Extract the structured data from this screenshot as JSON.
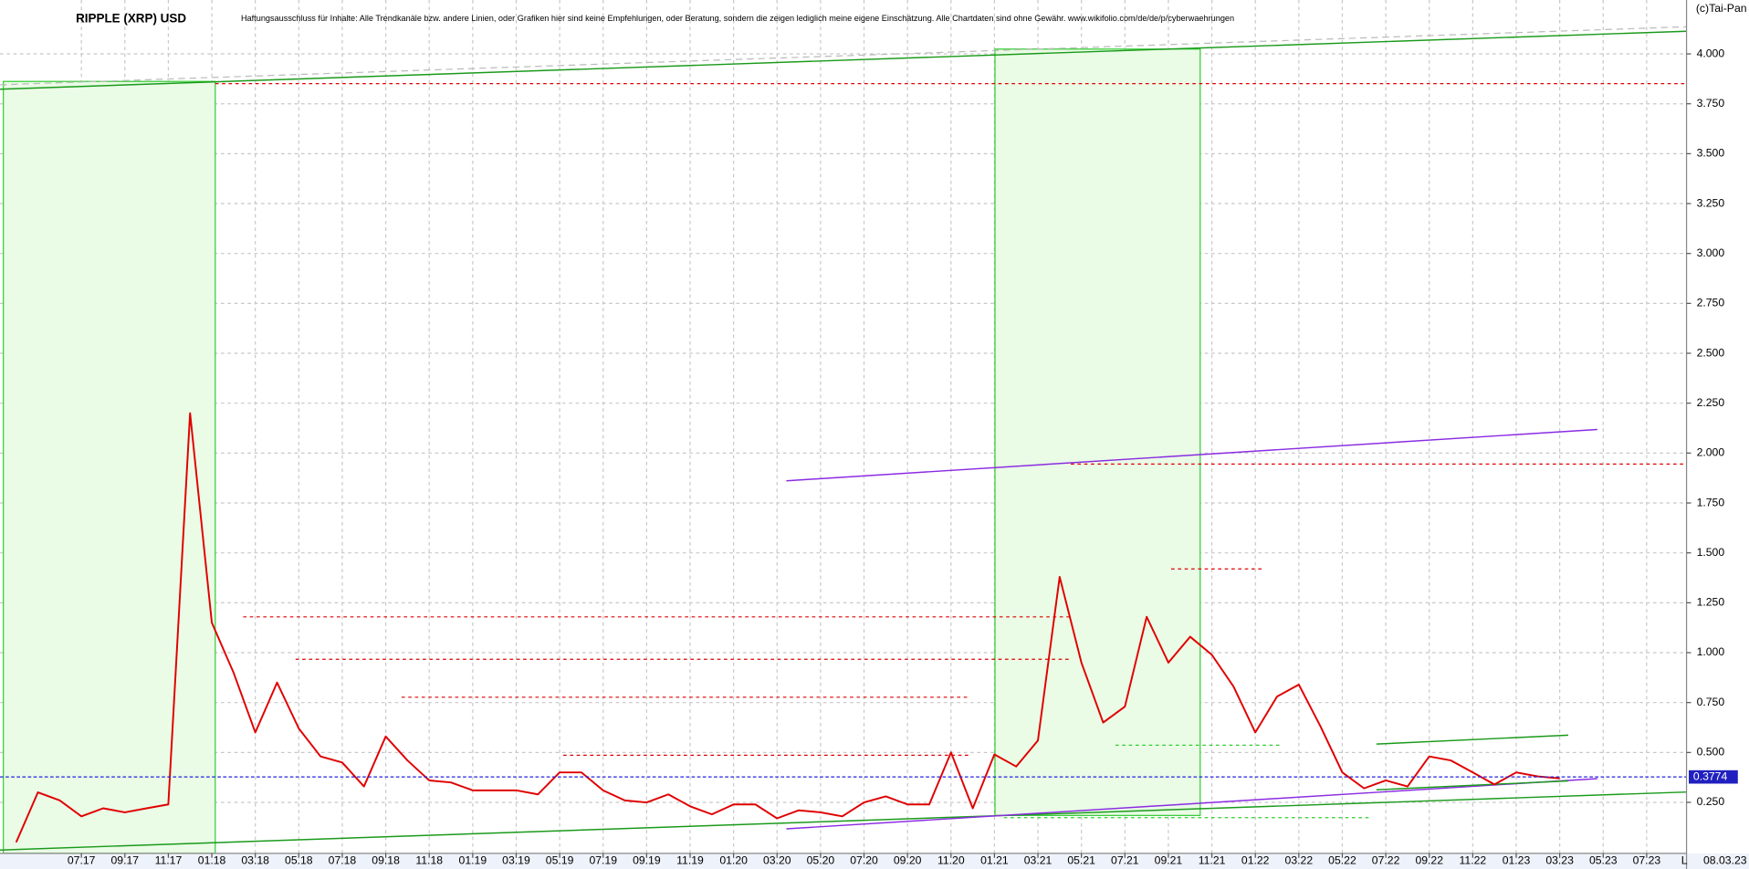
{
  "chart_data": {
    "type": "line",
    "title": "RIPPLE (XRP) USD",
    "subtitle": "Haftungsausschluss für Inhalte: Alle Trendkanäle bzw. andere Linien, oder Grafiken hier sind keine Empfehlungen, oder Beratung, sondern die zeigen lediglich meine eigene Einschätzung. Alle Chartdaten sind ohne Gewähr.  www.wikifolio.com/de/de/p/cyberwaehrungen",
    "copyright": "(c)Tai-Pan",
    "date_label": "08.03.23",
    "corner_label": "L",
    "categories": [
      null,
      null,
      null,
      "07.17",
      null,
      "09.17",
      null,
      "11.17",
      null,
      "01.18",
      null,
      "03.18",
      null,
      "05.18",
      null,
      "07.18",
      null,
      "09.18",
      null,
      "11.18",
      null,
      "01.19",
      null,
      "03.19",
      null,
      "05.19",
      null,
      "07.19",
      null,
      "09.19",
      null,
      "11.19",
      null,
      "01.20",
      null,
      "03.20",
      null,
      "05.20",
      null,
      "07.20",
      null,
      "09.20",
      null,
      "11.20",
      null,
      "01.21",
      null,
      "03.21",
      null,
      "05.21",
      null,
      "07.21",
      null,
      "09.21",
      null,
      "11.21",
      null,
      "01.22",
      null,
      "03.22",
      null,
      "05.22",
      null,
      "07.22",
      null,
      "09.22",
      null,
      "11.22",
      null,
      "01.23",
      null,
      "03.23",
      null,
      "05.23",
      null,
      "07.23"
    ],
    "series": [
      {
        "name": "XRP",
        "color": "#e00000",
        "values": [
          0.05,
          0.3,
          0.26,
          0.18,
          0.22,
          0.2,
          0.22,
          0.24,
          2.2,
          1.15,
          0.9,
          0.6,
          0.85,
          0.62,
          0.48,
          0.45,
          0.33,
          0.58,
          0.46,
          0.36,
          0.35,
          0.31,
          0.31,
          0.31,
          0.29,
          0.4,
          0.4,
          0.31,
          0.26,
          0.25,
          0.29,
          0.23,
          0.19,
          0.24,
          0.24,
          0.17,
          0.21,
          0.2,
          0.18,
          0.25,
          0.28,
          0.24,
          0.24,
          0.5,
          0.22,
          0.49,
          0.43,
          0.56,
          1.38,
          0.95,
          0.65,
          0.73,
          1.18,
          0.95,
          1.08,
          0.99,
          0.83,
          0.6,
          0.78,
          0.84,
          0.63,
          0.4,
          0.32,
          0.36,
          0.33,
          0.48,
          0.46,
          0.4,
          0.34,
          0.4,
          0.38,
          0.37,
          null,
          null,
          null,
          null
        ]
      }
    ],
    "last_price": 0.3774,
    "ylim": [
      0,
      4.27
    ],
    "yticks": [
      {
        "value": 0.25,
        "label": "0.250"
      },
      {
        "value": 0.5,
        "label": "0.500"
      },
      {
        "value": 0.75,
        "label": "0.750"
      },
      {
        "value": 1,
        "label": "1.000"
      },
      {
        "value": 1.25,
        "label": "1.250"
      },
      {
        "value": 1.5,
        "label": "1.500"
      },
      {
        "value": 1.75,
        "label": "1.750"
      },
      {
        "value": 2,
        "label": "2.000"
      },
      {
        "value": 2.25,
        "label": "2.250"
      },
      {
        "value": 2.5,
        "label": "2.500"
      },
      {
        "value": 2.75,
        "label": "2.750"
      },
      {
        "value": 3,
        "label": "3.000"
      },
      {
        "value": 3.25,
        "label": "3.250"
      },
      {
        "value": 3.5,
        "label": "3.500"
      },
      {
        "value": 3.75,
        "label": "3.750"
      },
      {
        "value": 4,
        "label": "4.000"
      }
    ],
    "grid": true
  }
}
